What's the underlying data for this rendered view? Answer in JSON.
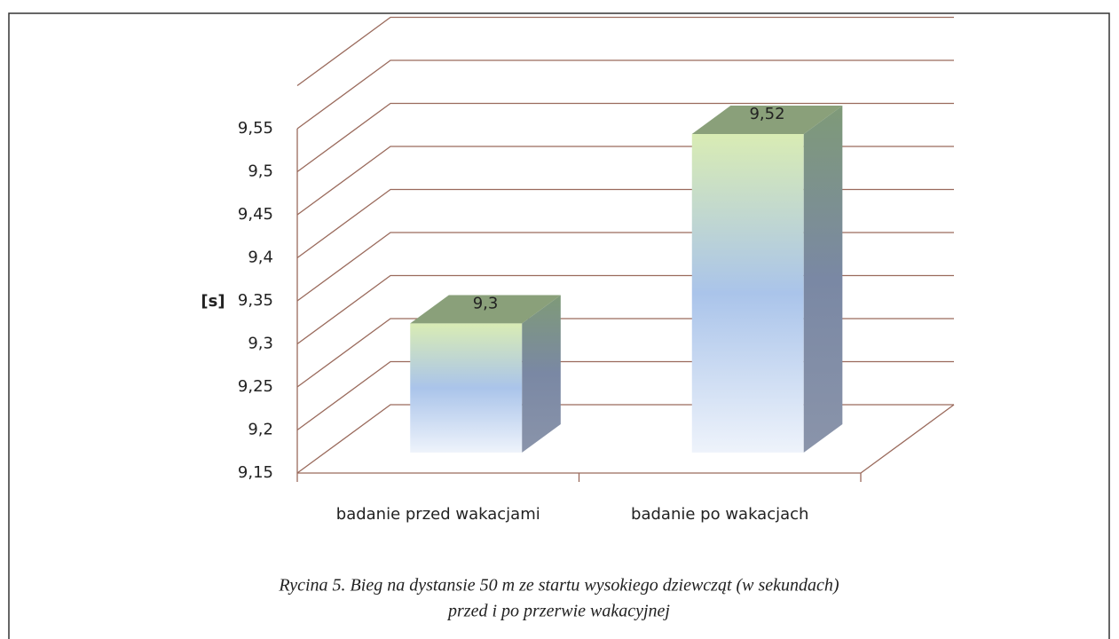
{
  "chart_data": {
    "type": "bar3d",
    "y_label": "[s]",
    "categories": [
      "badanie przed wakacjami",
      "badanie po wakacjach"
    ],
    "values": [
      9.3,
      9.52
    ],
    "value_labels": [
      "9,3",
      "9,52"
    ],
    "ylim": [
      9.15,
      9.6
    ],
    "yticks": [
      {
        "value": 9.15,
        "label": "9,15"
      },
      {
        "value": 9.2,
        "label": "9,2"
      },
      {
        "value": 9.25,
        "label": "9,25"
      },
      {
        "value": 9.3,
        "label": "9,3"
      },
      {
        "value": 9.35,
        "label": "9,35"
      },
      {
        "value": 9.4,
        "label": "9,4"
      },
      {
        "value": 9.45,
        "label": "9,45"
      },
      {
        "value": 9.5,
        "label": "9,5"
      },
      {
        "value": 9.55,
        "label": "9,55"
      }
    ],
    "grid": true,
    "caption": [
      "Rycina 5. Bieg na dystansie 50 m ze startu wysokiego dziewcząt (w sekundach)",
      "przed i po  przerwie wakacyjnej"
    ]
  }
}
